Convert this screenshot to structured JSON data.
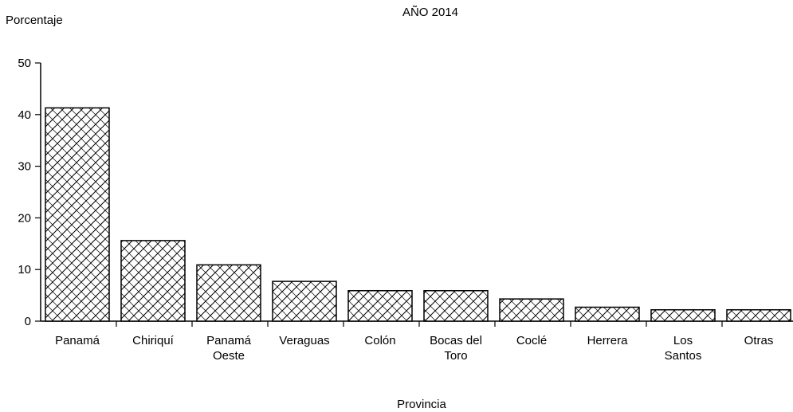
{
  "chart_data": {
    "type": "bar",
    "title": "AÑO 2014",
    "ylabel": "Porcentaje",
    "xlabel": "Provincia",
    "ylim": [
      0,
      50
    ],
    "yticks": [
      0,
      10,
      20,
      30,
      40,
      50
    ],
    "grid": false,
    "legend": "none",
    "fill_pattern": "crosshatch",
    "categories": [
      [
        "Panamá"
      ],
      [
        "Chiriquí"
      ],
      [
        "Panamá",
        "Oeste"
      ],
      [
        "Veraguas"
      ],
      [
        "Colón"
      ],
      [
        "Bocas del",
        "Toro"
      ],
      [
        "Coclé"
      ],
      [
        "Herrera"
      ],
      [
        "Los",
        "Santos"
      ],
      [
        "Otras"
      ]
    ],
    "values": [
      41.3,
      15.6,
      10.9,
      7.7,
      5.9,
      5.9,
      4.3,
      2.7,
      2.2,
      2.2
    ]
  },
  "colors": {
    "bar_fill": "#ffffff",
    "bar_stroke": "#000000",
    "hatch": "#000000"
  }
}
